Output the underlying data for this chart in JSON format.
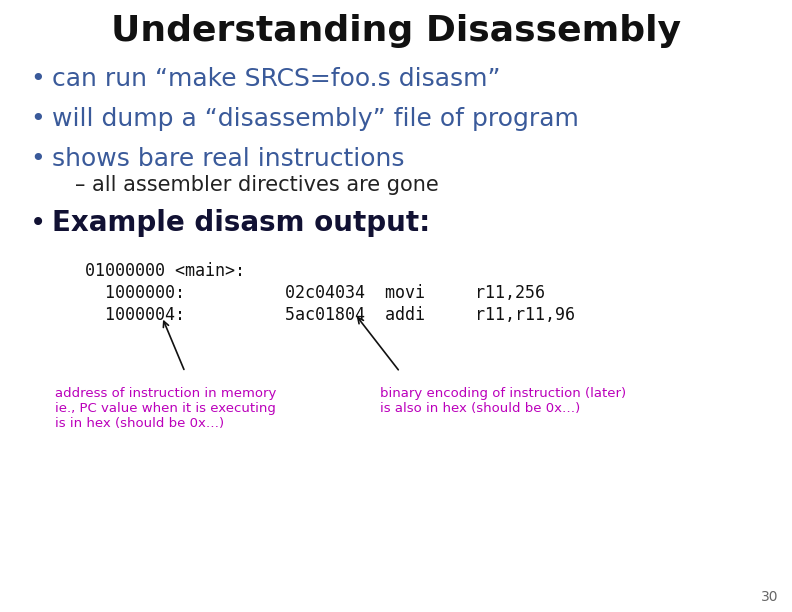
{
  "title": "Understanding Disassembly",
  "title_color": "#111111",
  "title_fontsize": 26,
  "bg_color": "#ffffff",
  "bullet_color": "#3a5a9a",
  "bullet_fontsize": 18,
  "bullets": [
    "can run “make SRCS=foo.s disasm”",
    "will dump a “disassembly” file of program",
    "shows bare real instructions"
  ],
  "sub_bullet": "– all assembler directives are gone",
  "sub_bullet_color": "#222222",
  "sub_bullet_fontsize": 15,
  "example_bullet": "Example disasm output:",
  "example_bullet_color": "#111133",
  "example_bullet_fontsize": 20,
  "code_color": "#111111",
  "code_fontsize": 12,
  "code_line0": "01000000 <main>:",
  "code_line1": "  1000000:          02c04034  movi     r11,256",
  "code_line2": "  1000004:          5ac01804  addi     r11,r11,96",
  "annotation_color": "#bb00bb",
  "annotation_fontsize": 9.5,
  "ann_left_text": "address of instruction in memory\nie., PC value when it is executing\nis in hex (should be 0x…)",
  "ann_right_text": "binary encoding of instruction (later)\nis also in hex (should be 0x…)",
  "page_number": "30",
  "page_number_color": "#666666",
  "page_number_fontsize": 10
}
